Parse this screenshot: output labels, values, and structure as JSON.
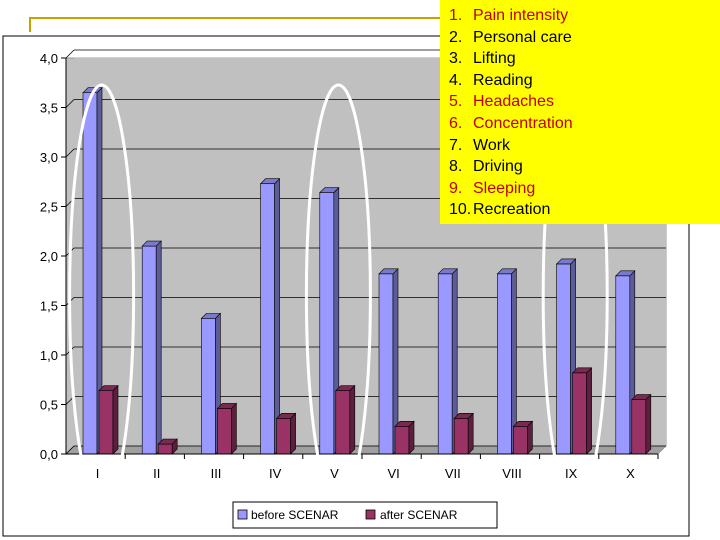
{
  "chart_data": {
    "type": "bar",
    "categories": [
      "I",
      "II",
      "III",
      "IV",
      "V",
      "VI",
      "VII",
      "VIII",
      "IX",
      "X"
    ],
    "series": [
      {
        "name": "before SCENAR",
        "values": [
          3.65,
          2.1,
          1.37,
          2.73,
          2.64,
          1.82,
          1.82,
          1.82,
          1.92,
          1.8
        ],
        "color": "#9999ff"
      },
      {
        "name": "after SCENAR",
        "values": [
          0.64,
          0.1,
          0.46,
          0.36,
          0.64,
          0.28,
          0.36,
          0.28,
          0.82,
          0.55
        ],
        "color": "#993366"
      }
    ],
    "ylim": [
      0,
      4
    ],
    "yticks": [
      "0,0",
      "0,5",
      "1,0",
      "1,5",
      "2,0",
      "2,5",
      "3,0",
      "3,5",
      "4,0"
    ],
    "ytick_values": [
      0,
      0.5,
      1.0,
      1.5,
      2.0,
      2.5,
      3.0,
      3.5,
      4.0
    ],
    "grid": true,
    "legend_position": "bottom",
    "highlighted_categories": [
      "I",
      "V",
      "IX"
    ]
  },
  "overlay": {
    "items": [
      {
        "num": "1.",
        "text": "Pain intensity",
        "color": "#c00000"
      },
      {
        "num": "2.",
        "text": "Personal care",
        "color": "#000000"
      },
      {
        "num": "3.",
        "text": "Lifting",
        "color": "#000000"
      },
      {
        "num": "4.",
        "text": "Reading",
        "color": "#000000"
      },
      {
        "num": "5.",
        "text": "Headaches",
        "color": "#c00000"
      },
      {
        "num": "6.",
        "text": "Concentration",
        "color": "#c00000"
      },
      {
        "num": "7.",
        "text": "Work",
        "color": "#000000"
      },
      {
        "num": "8.",
        "text": "Driving",
        "color": "#000000"
      },
      {
        "num": "9.",
        "text": "Sleeping",
        "color": "#c00000"
      },
      {
        "num": "10.",
        "text": "Recreation",
        "color": "#000000"
      }
    ],
    "background": "#ffff00"
  },
  "colors": {
    "plot_background": "#c0c0c0",
    "highlight_ellipse": "#ffffff",
    "accent_line": "#c8a000"
  }
}
